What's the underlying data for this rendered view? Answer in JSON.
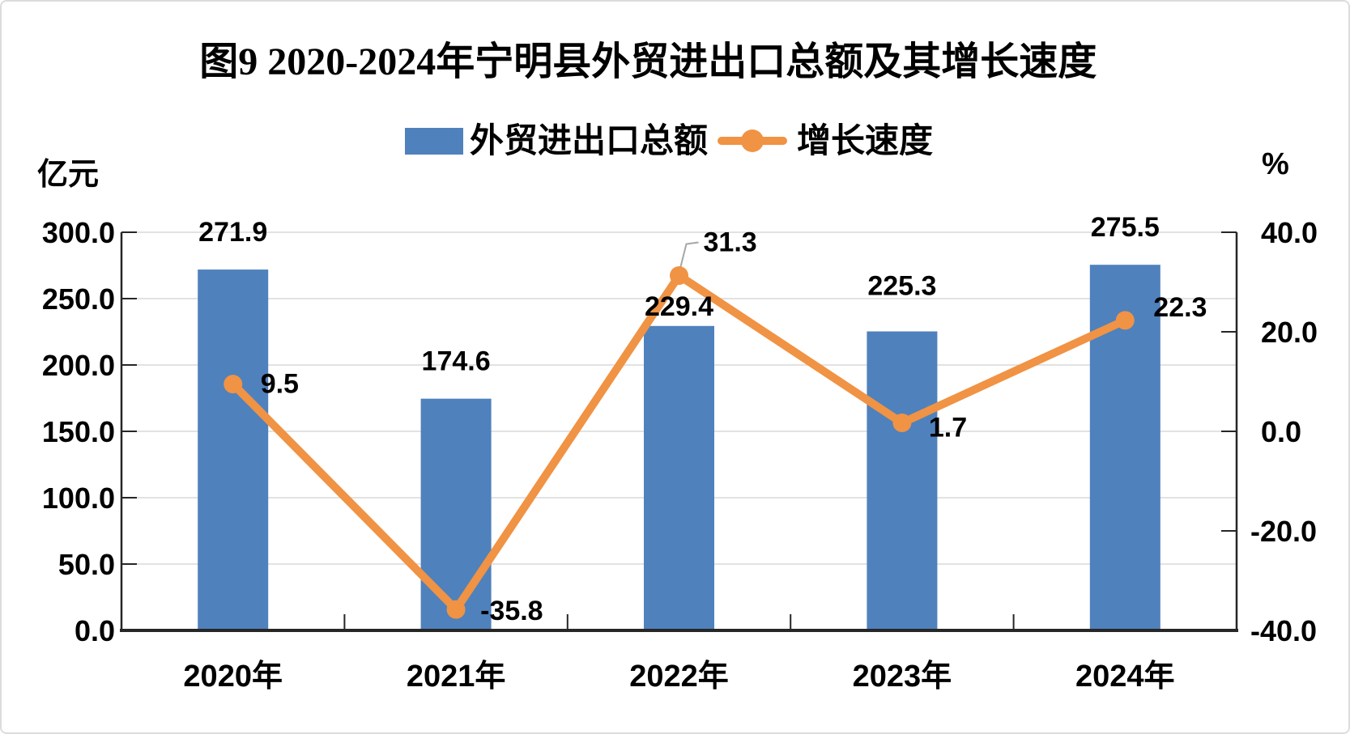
{
  "title": "图9 2020-2024年宁明县外贸进出口总额及其增长速度",
  "legend": {
    "bar_label": "外贸进出口总额",
    "line_label": "增长速度"
  },
  "colors": {
    "bar": "#4F81BD",
    "line": "#F09344",
    "grid": "#D9D9D9",
    "axis": "#262626",
    "text": "#000000",
    "leader": "#A6A6A6"
  },
  "chart_data": {
    "type": "combo-bar-line",
    "categories": [
      "2020年",
      "2021年",
      "2022年",
      "2023年",
      "2024年"
    ],
    "series": [
      {
        "name": "外贸进出口总额",
        "type": "bar",
        "axis": "left",
        "unit": "亿元",
        "values": [
          271.9,
          174.6,
          229.4,
          225.3,
          275.5
        ]
      },
      {
        "name": "增长速度",
        "type": "line",
        "axis": "right",
        "unit": "%",
        "values": [
          9.5,
          -35.8,
          31.3,
          1.7,
          22.3
        ]
      }
    ],
    "left_axis": {
      "unit": "亿元",
      "min": 0,
      "max": 300,
      "step": 50,
      "ticks": [
        "300.0",
        "250.0",
        "200.0",
        "150.0",
        "100.0",
        "50.0",
        "0.0"
      ]
    },
    "right_axis": {
      "unit": "%",
      "min": -40,
      "max": 40,
      "step": 20,
      "ticks": [
        "40.0",
        "20.0",
        "0.0",
        "-20.0",
        "-40.0"
      ]
    },
    "grid": true,
    "legend_position": "top",
    "data_labels": true
  }
}
